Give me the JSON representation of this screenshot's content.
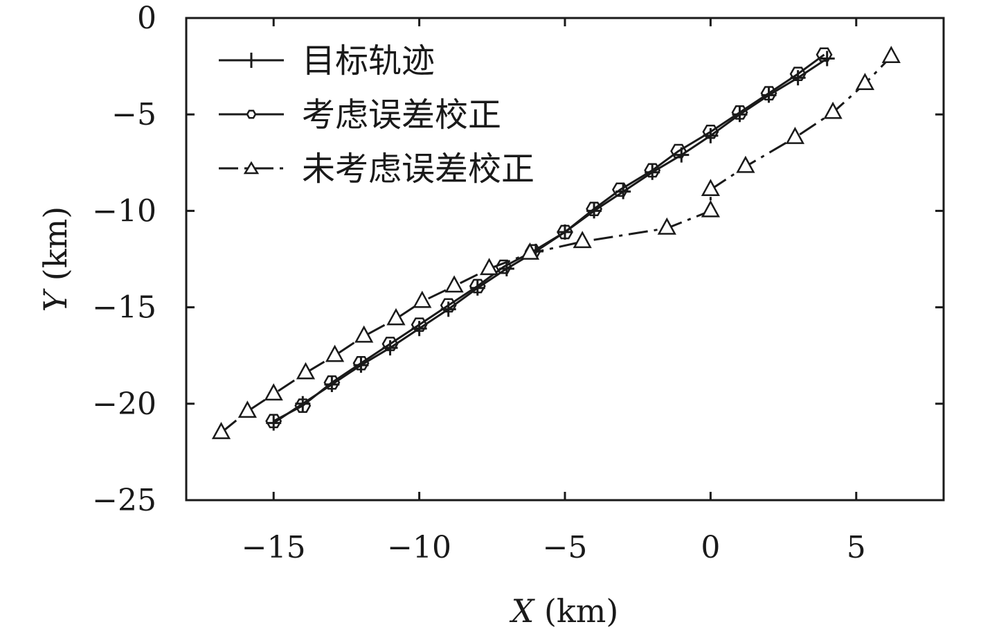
{
  "chart_data": {
    "type": "line",
    "xlabel": {
      "var": "X",
      "unit": " (km)"
    },
    "ylabel": {
      "var": "Y",
      "unit": " (km)"
    },
    "xlim": [
      -18,
      8
    ],
    "ylim": [
      -25,
      0
    ],
    "xticks": [
      -15,
      -10,
      -5,
      0,
      5
    ],
    "yticks": [
      0,
      -5,
      -10,
      -15,
      -20,
      -25
    ],
    "xtick_labels": [
      "−15",
      "−10",
      "−5",
      "0",
      "5"
    ],
    "ytick_labels": [
      "0",
      "−5",
      "−10",
      "−15",
      "−20",
      "−25"
    ],
    "grid": false,
    "legend_position": "top-left",
    "series": [
      {
        "name": "目标轨迹",
        "marker": "plus",
        "dash": "solid",
        "color": "#1a1a1a",
        "x": [
          -15,
          -14,
          -13,
          -12,
          -11,
          -10,
          -9,
          -8,
          -7,
          -6,
          -5,
          -4,
          -3,
          -2,
          -1,
          0,
          1,
          2,
          3,
          4
        ],
        "y": [
          -21.0,
          -20.0,
          -19.0,
          -18.0,
          -17.1,
          -16.1,
          -15.1,
          -14.0,
          -13.0,
          -12.1,
          -11.1,
          -10.0,
          -9.0,
          -8.0,
          -7.1,
          -6.1,
          -5.0,
          -4.0,
          -3.1,
          -2.1
        ]
      },
      {
        "name": "考虑误差校正",
        "marker": "hexagon",
        "dash": "solid",
        "color": "#1a1a1a",
        "x": [
          -15,
          -14,
          -13,
          -12,
          -11,
          -10,
          -9,
          -8,
          -7.1,
          -6.1,
          -5,
          -4,
          -3.1,
          -2,
          -1.1,
          0,
          1,
          2,
          3,
          3.9
        ],
        "y": [
          -20.9,
          -20.1,
          -18.9,
          -17.9,
          -16.9,
          -15.9,
          -14.9,
          -13.9,
          -12.9,
          -12.1,
          -11.1,
          -9.9,
          -8.9,
          -7.9,
          -6.9,
          -5.9,
          -4.9,
          -3.9,
          -2.9,
          -1.9
        ]
      },
      {
        "name": "未考虑误差校正",
        "marker": "triangle",
        "dash": "dashdot",
        "color": "#1a1a1a",
        "x": [
          -16.8,
          -15.9,
          -15.0,
          -13.9,
          -12.9,
          -11.9,
          -10.8,
          -9.9,
          -8.8,
          -7.6,
          -6.2,
          -4.4,
          -1.5,
          0.0,
          0.0,
          1.2,
          2.9,
          4.2,
          5.3,
          6.2
        ],
        "y": [
          -21.5,
          -20.4,
          -19.5,
          -18.4,
          -17.5,
          -16.5,
          -15.6,
          -14.7,
          -13.9,
          -13.0,
          -12.2,
          -11.6,
          -10.9,
          -10.0,
          -8.9,
          -7.7,
          -6.2,
          -4.9,
          -3.4,
          -2.0
        ]
      }
    ]
  }
}
